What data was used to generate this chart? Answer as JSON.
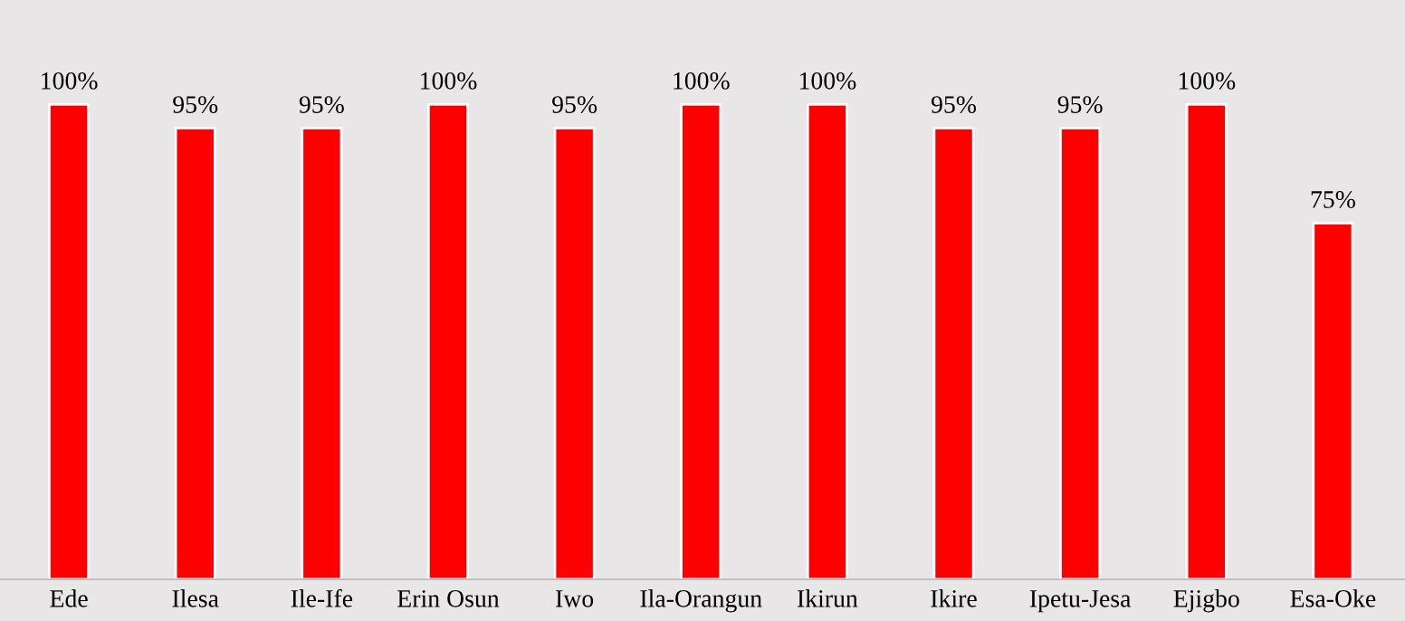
{
  "chart_data": {
    "type": "bar",
    "categories": [
      "Ede",
      "Ilesa",
      "Ile-Ife",
      "Erin Osun",
      "Iwo",
      "Ila-Orangun",
      "Ikirun",
      "Ikire",
      "Ipetu-Jesa",
      "Ejigbo",
      "Esa-Oke"
    ],
    "values": [
      100,
      95,
      95,
      100,
      95,
      100,
      100,
      95,
      95,
      100,
      75
    ],
    "value_labels": [
      "100%",
      "95%",
      "95%",
      "100%",
      "95%",
      "100%",
      "100%",
      "95%",
      "95%",
      "100%",
      "75%"
    ],
    "color": "#ff0000",
    "grid": false,
    "legend": false
  }
}
